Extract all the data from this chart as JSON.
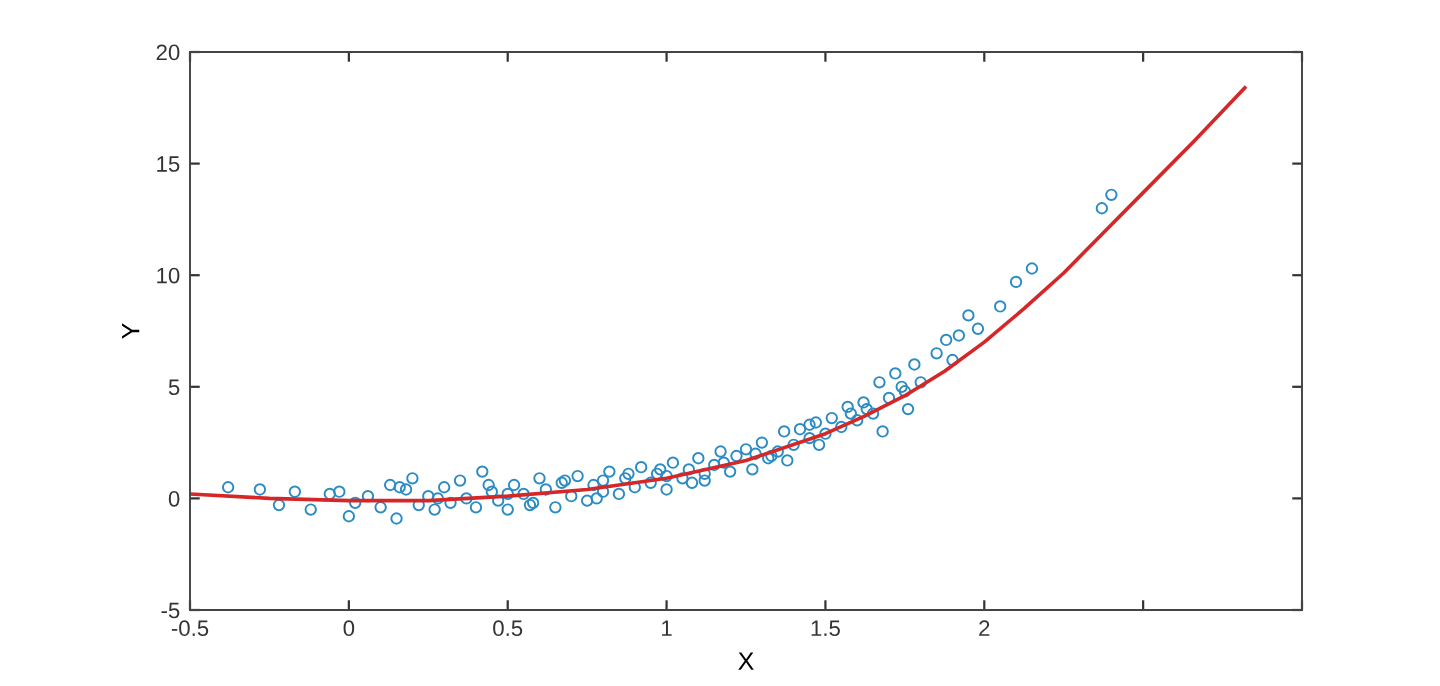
{
  "chart_data": {
    "type": "scatter",
    "xlabel": "X",
    "ylabel": "Y",
    "xlim": [
      -0.5,
      3
    ],
    "ylim": [
      -5,
      20
    ],
    "xticks": [
      -0.5,
      0,
      0.5,
      1,
      1.5,
      2,
      {
        "value": 2.5,
        "label": null
      },
      {
        "value": 3,
        "label": null
      }
    ],
    "yticks": [
      -5,
      0,
      5,
      10,
      15,
      20
    ],
    "grid": false,
    "legend": false,
    "series": [
      {
        "color": "#2b8cc4",
        "marker": "circle",
        "x": [
          -0.38,
          -0.28,
          -0.22,
          -0.17,
          -0.12,
          -0.06,
          -0.03,
          0.0,
          0.02,
          0.06,
          0.1,
          0.13,
          0.15,
          0.18,
          0.2,
          0.22,
          0.25,
          0.27,
          0.3,
          0.32,
          0.35,
          0.37,
          0.4,
          0.42,
          0.45,
          0.47,
          0.5,
          0.52,
          0.55,
          0.57,
          0.6,
          0.62,
          0.65,
          0.67,
          0.7,
          0.72,
          0.75,
          0.77,
          0.8,
          0.82,
          0.85,
          0.87,
          0.9,
          0.92,
          0.95,
          0.97,
          1.0,
          1.02,
          1.05,
          1.07,
          1.1,
          1.12,
          1.15,
          1.17,
          1.2,
          1.22,
          1.25,
          1.27,
          1.3,
          1.32,
          1.35,
          1.37,
          1.4,
          1.42,
          1.45,
          1.47,
          1.5,
          1.52,
          1.55,
          1.57,
          1.6,
          1.62,
          1.65,
          1.67,
          1.7,
          1.72,
          1.75,
          1.78,
          1.8,
          1.85,
          1.88,
          1.9,
          1.95,
          1.98,
          2.05,
          2.1,
          2.15,
          2.37,
          2.4,
          0.16,
          0.28,
          0.44,
          0.58,
          0.68,
          0.78,
          0.88,
          0.98,
          1.08,
          1.18,
          1.28,
          1.38,
          1.48,
          1.58,
          1.68,
          1.76,
          0.5,
          0.8,
          1.0,
          1.12,
          1.33,
          1.45,
          1.63,
          1.74,
          1.92
        ],
        "values": [
          0.5,
          0.4,
          -0.3,
          0.3,
          -0.5,
          0.2,
          0.3,
          -0.8,
          -0.2,
          0.1,
          -0.4,
          0.6,
          -0.9,
          0.4,
          0.9,
          -0.3,
          0.1,
          -0.5,
          0.5,
          -0.2,
          0.8,
          0.0,
          -0.4,
          1.2,
          0.3,
          -0.1,
          -0.5,
          0.6,
          0.2,
          -0.3,
          0.9,
          0.4,
          -0.4,
          0.7,
          0.1,
          1.0,
          -0.1,
          0.6,
          0.3,
          1.2,
          0.2,
          0.9,
          0.5,
          1.4,
          0.7,
          1.1,
          0.4,
          1.6,
          0.9,
          1.3,
          1.8,
          0.8,
          1.5,
          2.1,
          1.2,
          1.9,
          2.2,
          1.3,
          2.5,
          1.8,
          2.1,
          3.0,
          2.4,
          3.1,
          2.7,
          3.4,
          2.9,
          3.6,
          3.2,
          4.1,
          3.5,
          4.3,
          3.8,
          5.2,
          4.5,
          5.6,
          4.8,
          6.0,
          5.2,
          6.5,
          7.1,
          6.2,
          8.2,
          7.6,
          8.6,
          9.7,
          10.3,
          13.0,
          13.6,
          0.5,
          0.0,
          0.6,
          -0.2,
          0.8,
          0.0,
          1.1,
          1.3,
          0.7,
          1.6,
          2.0,
          1.7,
          2.4,
          3.8,
          3.0,
          4.0,
          0.2,
          0.8,
          1.0,
          1.1,
          1.9,
          3.3,
          4.0,
          5.0,
          7.3
        ]
      },
      {
        "type": "line",
        "color": "#d62728",
        "line_style": "solid",
        "marker": "none",
        "x": [
          -0.5,
          -0.25,
          0.0,
          0.25,
          0.5,
          0.75,
          1.0,
          1.25,
          1.5,
          1.625,
          1.75,
          1.875,
          2.0,
          2.125,
          2.25,
          2.375,
          2.5,
          2.66,
          2.82
        ],
        "values": [
          0.2,
          0.0,
          -0.1,
          -0.1,
          0.1,
          0.4,
          0.9,
          1.7,
          2.9,
          3.7,
          4.6,
          5.7,
          7.0,
          8.5,
          10.1,
          11.9,
          13.7,
          16.0,
          18.4
        ]
      }
    ]
  }
}
